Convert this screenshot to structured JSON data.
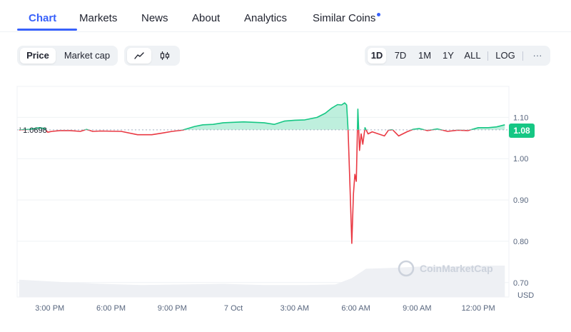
{
  "tabs": [
    {
      "label": "Chart",
      "active": true
    },
    {
      "label": "Markets"
    },
    {
      "label": "News"
    },
    {
      "label": "About"
    },
    {
      "label": "Analytics"
    },
    {
      "label": "Similar Coins",
      "has_dot": true
    }
  ],
  "metric_toggle": {
    "options": [
      "Price",
      "Market cap"
    ],
    "selected": "Price"
  },
  "chart_type_toggle": {
    "options": [
      "line-chart-icon",
      "candlestick-icon"
    ],
    "selected": "line-chart-icon"
  },
  "range_toggle": {
    "options": [
      "1D",
      "7D",
      "1M",
      "1Y",
      "ALL"
    ],
    "selected": "1D",
    "log_label": "LOG",
    "more_label": "···"
  },
  "colors": {
    "accent": "#3861fb",
    "up": "#16c784",
    "down": "#ea3943",
    "gray": "#a6b0c3"
  },
  "chart_data": {
    "type": "line",
    "open_price_label": "1.0698",
    "open_price": 1.0698,
    "current_price_label": "1.08",
    "watermark": "CoinMarketCap",
    "y_ticks": [
      "0.70",
      "0.80",
      "0.90",
      "1.00",
      "1.10"
    ],
    "y_tick_values": [
      0.7,
      0.8,
      0.9,
      1.0,
      1.1
    ],
    "ylim": [
      0.665,
      1.175
    ],
    "currency_label": "USD",
    "x_ticks": [
      "3:00 PM",
      "6:00 PM",
      "9:00 PM",
      "7 Oct",
      "3:00 AM",
      "6:00 AM",
      "9:00 AM",
      "12:00 PM"
    ],
    "x_tick_hours": [
      1.5,
      4.5,
      7.5,
      10.5,
      13.5,
      16.5,
      19.5,
      22.5
    ],
    "xlim": [
      -0.1,
      24
    ],
    "series": [
      {
        "x": [
          0,
          0.5,
          1.0,
          1.25,
          1.4,
          1.6,
          2.0,
          2.5,
          3.0,
          3.3,
          3.6,
          4.0,
          5.0,
          5.8,
          6.5,
          7.0,
          7.5,
          8.0,
          8.6,
          9.0,
          9.5,
          10.0,
          11.0,
          12.0,
          12.5,
          13.0,
          13.5,
          14.0,
          14.6,
          15.0,
          15.3,
          15.6,
          15.8,
          15.95,
          16.05,
          16.12,
          16.22,
          16.3,
          16.38,
          16.45,
          16.52,
          16.6,
          16.68,
          16.76,
          16.84,
          16.95,
          17.1,
          17.3,
          17.6,
          17.9,
          18.1,
          18.3,
          18.6,
          19.0,
          19.3,
          19.6,
          20.0,
          20.5,
          21.0,
          21.5,
          22.0,
          22.5,
          23.0,
          23.4,
          23.8
        ],
        "y": [
          1.0698,
          1.071,
          1.075,
          1.073,
          1.064,
          1.066,
          1.068,
          1.068,
          1.066,
          1.071,
          1.066,
          1.067,
          1.066,
          1.058,
          1.058,
          1.062,
          1.066,
          1.069,
          1.078,
          1.082,
          1.083,
          1.087,
          1.089,
          1.087,
          1.083,
          1.091,
          1.093,
          1.094,
          1.1,
          1.11,
          1.122,
          1.131,
          1.13,
          1.135,
          1.13,
          1.069,
          0.92,
          0.795,
          0.915,
          0.962,
          0.945,
          1.12,
          1.02,
          1.06,
          1.035,
          1.075,
          1.06,
          1.065,
          1.06,
          1.055,
          1.069,
          1.07,
          1.055,
          1.065,
          1.071,
          1.073,
          1.068,
          1.072,
          1.066,
          1.069,
          1.068,
          1.075,
          1.075,
          1.077,
          1.082
        ]
      }
    ],
    "volume": {
      "x": [
        0,
        2,
        4,
        6,
        8,
        10,
        12,
        14,
        15.5,
        16.3,
        17,
        18,
        19,
        20,
        21,
        22,
        23,
        23.8
      ],
      "level": [
        0.55,
        0.48,
        0.42,
        0.38,
        0.4,
        0.42,
        0.38,
        0.38,
        0.4,
        0.6,
        0.9,
        0.92,
        0.95,
        0.98,
        0.97,
        0.99,
        1.0,
        1.0
      ]
    }
  }
}
